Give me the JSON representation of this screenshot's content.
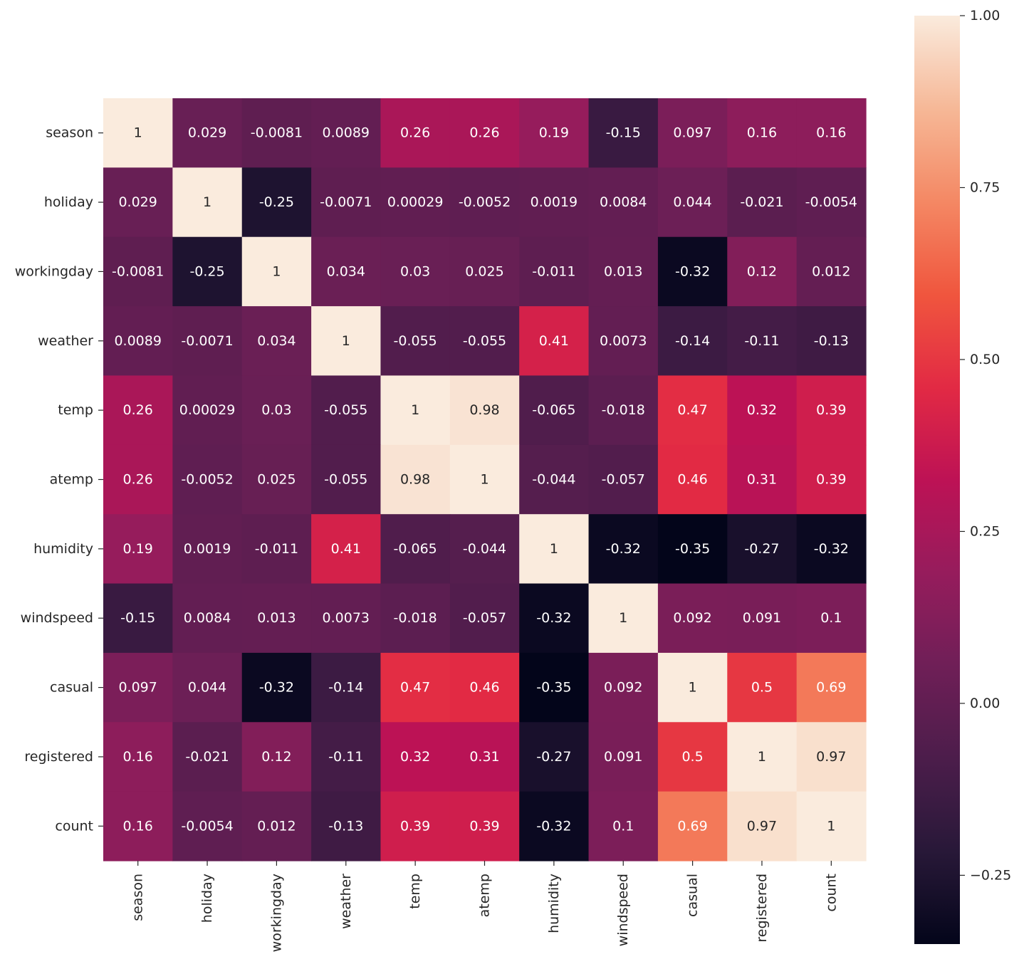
{
  "chart_data": {
    "type": "heatmap",
    "title": "",
    "xlabel": "",
    "ylabel": "",
    "x_labels": [
      "season",
      "holiday",
      "workingday",
      "weather",
      "temp",
      "atemp",
      "humidity",
      "windspeed",
      "casual",
      "registered",
      "count"
    ],
    "y_labels": [
      "season",
      "holiday",
      "workingday",
      "weather",
      "temp",
      "atemp",
      "humidity",
      "windspeed",
      "casual",
      "registered",
      "count"
    ],
    "values": [
      [
        1,
        0.029,
        -0.0081,
        0.0089,
        0.26,
        0.26,
        0.19,
        -0.15,
        0.097,
        0.16,
        0.16
      ],
      [
        0.029,
        1,
        -0.25,
        -0.0071,
        0.00029,
        -0.0052,
        0.0019,
        0.0084,
        0.044,
        -0.021,
        -0.0054
      ],
      [
        -0.0081,
        -0.25,
        1,
        0.034,
        0.03,
        0.025,
        -0.011,
        0.013,
        -0.32,
        0.12,
        0.012
      ],
      [
        0.0089,
        -0.0071,
        0.034,
        1,
        -0.055,
        -0.055,
        0.41,
        0.0073,
        -0.14,
        -0.11,
        -0.13
      ],
      [
        0.26,
        0.00029,
        0.03,
        -0.055,
        1,
        0.98,
        -0.065,
        -0.018,
        0.47,
        0.32,
        0.39
      ],
      [
        0.26,
        -0.0052,
        0.025,
        -0.055,
        0.98,
        1,
        -0.044,
        -0.057,
        0.46,
        0.31,
        0.39
      ],
      [
        0.19,
        0.0019,
        -0.011,
        0.41,
        -0.065,
        -0.044,
        1,
        -0.32,
        -0.35,
        -0.27,
        -0.32
      ],
      [
        -0.15,
        0.0084,
        0.013,
        0.0073,
        -0.018,
        -0.057,
        -0.32,
        1,
        0.092,
        0.091,
        0.1
      ],
      [
        0.097,
        0.044,
        -0.32,
        -0.14,
        0.47,
        0.46,
        -0.35,
        0.092,
        1,
        0.5,
        0.69
      ],
      [
        0.16,
        -0.021,
        0.12,
        -0.11,
        0.32,
        0.31,
        -0.27,
        0.091,
        0.5,
        1,
        0.97
      ],
      [
        0.16,
        -0.0054,
        0.012,
        -0.13,
        0.39,
        0.39,
        -0.32,
        0.1,
        0.69,
        0.97,
        1
      ]
    ],
    "cell_labels": [
      [
        "1",
        "0.029",
        "-0.0081",
        "0.0089",
        "0.26",
        "0.26",
        "0.19",
        "-0.15",
        "0.097",
        "0.16",
        "0.16"
      ],
      [
        "0.029",
        "1",
        "-0.25",
        "-0.0071",
        "0.00029",
        "-0.0052",
        "0.0019",
        "0.0084",
        "0.044",
        "-0.021",
        "-0.0054"
      ],
      [
        "-0.0081",
        "-0.25",
        "1",
        "0.034",
        "0.03",
        "0.025",
        "-0.011",
        "0.013",
        "-0.32",
        "0.12",
        "0.012"
      ],
      [
        "0.0089",
        "-0.0071",
        "0.034",
        "1",
        "-0.055",
        "-0.055",
        "0.41",
        "0.0073",
        "-0.14",
        "-0.11",
        "-0.13"
      ],
      [
        "0.26",
        "0.00029",
        "0.03",
        "-0.055",
        "1",
        "0.98",
        "-0.065",
        "-0.018",
        "0.47",
        "0.32",
        "0.39"
      ],
      [
        "0.26",
        "-0.0052",
        "0.025",
        "-0.055",
        "0.98",
        "1",
        "-0.044",
        "-0.057",
        "0.46",
        "0.31",
        "0.39"
      ],
      [
        "0.19",
        "0.0019",
        "-0.011",
        "0.41",
        "-0.065",
        "-0.044",
        "1",
        "-0.32",
        "-0.35",
        "-0.27",
        "-0.32"
      ],
      [
        "-0.15",
        "0.0084",
        "0.013",
        "0.0073",
        "-0.018",
        "-0.057",
        "-0.32",
        "1",
        "0.092",
        "0.091",
        "0.1"
      ],
      [
        "0.097",
        "0.044",
        "-0.32",
        "-0.14",
        "0.47",
        "0.46",
        "-0.35",
        "0.092",
        "1",
        "0.5",
        "0.69"
      ],
      [
        "0.16",
        "-0.021",
        "0.12",
        "-0.11",
        "0.32",
        "0.31",
        "-0.27",
        "0.091",
        "0.5",
        "1",
        "0.97"
      ],
      [
        "0.16",
        "-0.0054",
        "0.012",
        "-0.13",
        "0.39",
        "0.39",
        "-0.32",
        "0.1",
        "0.69",
        "0.97",
        "1"
      ]
    ],
    "colormap": "rocket",
    "vmin": -0.35,
    "vmax": 1.0,
    "colorbar": {
      "ticks": [
        1.0,
        0.75,
        0.5,
        0.25,
        0.0,
        -0.25
      ],
      "tick_labels": [
        "1.00",
        "0.75",
        "0.50",
        "0.25",
        "0.00",
        "−0.25"
      ]
    },
    "grid": false,
    "colors": {
      "annotation_light": "#ffffff",
      "annotation_dark": "#262626",
      "tick_color": "#262626"
    }
  }
}
